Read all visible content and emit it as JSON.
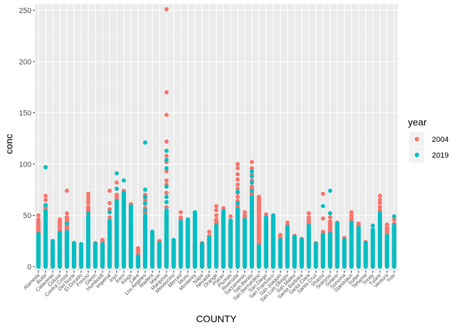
{
  "chart_data": {
    "type": "scatter",
    "xlabel": "COUNTY",
    "ylabel": "conc",
    "ylim": [
      -4,
      256
    ],
    "yticks": [
      0,
      50,
      100,
      150,
      200,
      250
    ],
    "grid": true,
    "legend": {
      "title": "year",
      "placement": "right"
    },
    "categories": [
      "Alameda",
      "Butte",
      "Calaveras",
      "Colusa",
      "Contra Costa",
      "Del Norte",
      "El Dorado",
      "Fresno",
      "Glenn",
      "Humboldt",
      "Imperial",
      "Inyo",
      "Kern",
      "Kings",
      "Lake",
      "Los Angeles",
      "Madera",
      "Marin",
      "Mariposa",
      "Mendocino",
      "Merced",
      "Mono",
      "Monterey",
      "Napa",
      "Nevada",
      "Orange",
      "Placer",
      "Plumas",
      "Riverside",
      "Sacramento",
      "San Benito",
      "San Bernardino",
      "San Diego",
      "San Francisco",
      "San Joaquin",
      "San Luis Obispo",
      "San Mateo",
      "Santa Barbara",
      "Santa Clara",
      "Santa Cruz",
      "Shasta",
      "Siskiyou",
      "Solano",
      "Sonoma",
      "Stanislaus",
      "Sutter",
      "Tehama",
      "Trinity",
      "Tulare",
      "Ventura",
      "Yolo"
    ],
    "series": [
      {
        "name": "2004",
        "color": "#F8766D",
        "columns": [
          [
            0,
            50,
            46,
            44
          ],
          [
            1,
            69,
            65,
            60
          ],
          [
            2,
            22
          ],
          [
            3,
            46,
            44
          ],
          [
            4,
            74,
            52,
            48
          ],
          [
            5,
            23
          ],
          [
            6,
            19
          ],
          [
            7,
            71,
            68,
            65,
            62,
            58
          ],
          [
            8,
            23
          ],
          [
            9,
            26
          ],
          [
            10,
            74,
            62,
            56,
            48,
            42
          ],
          [
            11,
            82,
            70
          ],
          [
            12,
            74,
            72,
            68
          ],
          [
            13,
            61
          ],
          [
            14,
            18
          ],
          [
            15,
            75,
            70,
            68,
            65,
            61,
            57,
            54
          ],
          [
            16,
            30
          ],
          [
            17,
            25
          ],
          [
            18,
            251,
            170,
            148,
            122,
            108,
            102,
            93,
            84,
            80,
            72,
            58,
            50
          ],
          [
            19,
            25
          ],
          [
            20,
            53,
            48
          ],
          [
            21,
            40
          ],
          [
            22,
            23
          ],
          [
            23,
            23
          ],
          [
            24,
            34,
            30
          ],
          [
            25,
            59,
            55,
            50,
            46
          ],
          [
            26,
            57,
            50
          ],
          [
            27,
            49,
            42
          ],
          [
            28,
            100,
            96,
            90,
            85,
            80,
            76,
            72,
            68,
            64,
            60
          ],
          [
            29,
            53,
            50
          ],
          [
            30,
            102,
            96,
            90,
            84,
            78
          ],
          [
            31,
            68
          ],
          [
            32,
            51,
            47,
            43
          ],
          [
            33,
            50,
            46
          ],
          [
            34,
            31
          ],
          [
            35,
            43,
            40
          ],
          [
            36,
            30
          ],
          [
            37,
            27
          ],
          [
            38,
            52,
            48
          ],
          [
            39,
            23
          ],
          [
            40,
            71,
            47,
            34
          ],
          [
            41,
            52,
            48,
            44
          ],
          [
            42,
            43
          ],
          [
            43,
            28
          ],
          [
            44,
            53,
            50
          ],
          [
            45,
            42
          ],
          [
            46,
            24
          ],
          [
            47,
            24
          ],
          [
            48,
            69,
            65,
            62,
            58,
            55
          ],
          [
            49,
            41,
            38
          ],
          [
            50,
            46,
            42
          ]
        ]
      },
      {
        "name": "2019",
        "color": "#00BFC4",
        "columns": [
          [
            0,
            32
          ],
          [
            1,
            97,
            60,
            54
          ],
          [
            2,
            25
          ],
          [
            3,
            33
          ],
          [
            4,
            42,
            34
          ],
          [
            5,
            23
          ],
          [
            6,
            22
          ],
          [
            7,
            52,
            48
          ],
          [
            8,
            22
          ],
          [
            9,
            22
          ],
          [
            10,
            53,
            45
          ],
          [
            11,
            91,
            76,
            64
          ],
          [
            12,
            84,
            72
          ],
          [
            13,
            59
          ],
          [
            14,
            10
          ],
          [
            15,
            121,
            75,
            68,
            62,
            55,
            50
          ],
          [
            16,
            34
          ],
          [
            17,
            23
          ],
          [
            18,
            113,
            104,
            96,
            78,
            68,
            63,
            55
          ],
          [
            19,
            26
          ],
          [
            20,
            44
          ],
          [
            21,
            46
          ],
          [
            22,
            53
          ],
          [
            23,
            22
          ],
          [
            24,
            28
          ],
          [
            25,
            40
          ],
          [
            26,
            54
          ],
          [
            27,
            45
          ],
          [
            28,
            73,
            62,
            56
          ],
          [
            29,
            46
          ],
          [
            30,
            93,
            88,
            82,
            74,
            68
          ],
          [
            31,
            20
          ],
          [
            32,
            48
          ],
          [
            33,
            50
          ],
          [
            34,
            26
          ],
          [
            35,
            39
          ],
          [
            36,
            29
          ],
          [
            37,
            26
          ],
          [
            38,
            40
          ],
          [
            39,
            22
          ],
          [
            40,
            59,
            31
          ],
          [
            41,
            74,
            52,
            32
          ],
          [
            42,
            42
          ],
          [
            43,
            26
          ],
          [
            44,
            43
          ],
          [
            45,
            38
          ],
          [
            46,
            23
          ],
          [
            47,
            40,
            36
          ],
          [
            48,
            52
          ],
          [
            49,
            30
          ],
          [
            50,
            49,
            40
          ]
        ]
      }
    ]
  }
}
